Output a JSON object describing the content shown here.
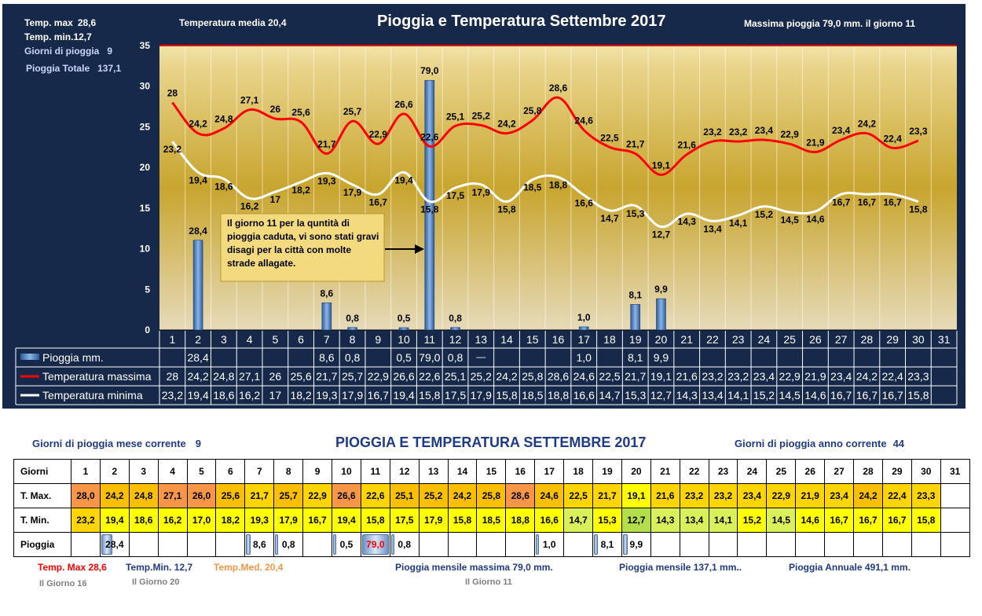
{
  "top": {
    "title": "Pioggia e Temperatura Settembre 2017",
    "temp_max_label": "Temp. max",
    "temp_max_value": "28,6",
    "temp_min_label": "Temp. min.12,7",
    "giorni_pioggia_label": "Giorni di pioggia",
    "giorni_pioggia_value": "9",
    "pioggia_totale_label": "Pioggia Totale",
    "pioggia_totale_value": "137,1",
    "temp_media": "Temperatura media  20,4",
    "massima_pioggia": "Massima pioggia  79,0 mm.  il giorno 11",
    "annotation": "Il giorno 11 per la quntità di pioggia caduta, vi sono stati gravi disagi per la città con molte strade allagate.",
    "legend_rain": "Pioggia mm.",
    "legend_tmax": "Temperatura massima",
    "legend_tmin": "Temperatura minima"
  },
  "chart_data": {
    "type": "bar+line",
    "categories": [
      "1",
      "2",
      "3",
      "4",
      "5",
      "6",
      "7",
      "8",
      "9",
      "10",
      "11",
      "12",
      "13",
      "14",
      "15",
      "16",
      "17",
      "18",
      "19",
      "20",
      "21",
      "22",
      "23",
      "24",
      "25",
      "26",
      "27",
      "28",
      "29",
      "30",
      "31"
    ],
    "y_left": {
      "min": 0,
      "max": 35,
      "ticks": [
        0,
        5,
        10,
        15,
        20,
        25,
        30,
        35
      ]
    },
    "y_right": {
      "min": 0,
      "max": 90,
      "ticks": [
        0,
        10,
        20,
        30,
        40,
        50,
        60,
        70,
        80,
        90
      ]
    },
    "series": [
      {
        "name": "Pioggia mm.",
        "type": "bar",
        "axis": "right",
        "color": "#4f81bd",
        "values": [
          null,
          28.4,
          null,
          null,
          null,
          null,
          8.6,
          0.8,
          null,
          0.5,
          79.0,
          0.8,
          null,
          null,
          null,
          null,
          1.0,
          null,
          8.1,
          9.9,
          null,
          null,
          null,
          null,
          null,
          null,
          null,
          null,
          null,
          null,
          null
        ],
        "labels": [
          "",
          "28,4",
          "",
          "",
          "",
          "",
          "8,6",
          "0,8",
          "",
          "0,5",
          "79,0",
          "0,8",
          "",
          "",
          "",
          "",
          "1,0",
          "",
          "8,1",
          "9,9",
          "",
          "",
          "",
          "",
          "",
          "",
          "",
          "",
          "",
          "",
          ""
        ]
      },
      {
        "name": "Temperatura massima",
        "type": "line",
        "axis": "left",
        "color": "#ff0000",
        "values": [
          28,
          24.2,
          24.8,
          27.1,
          26,
          25.6,
          21.7,
          25.7,
          22.9,
          26.6,
          22.6,
          25.1,
          25.2,
          24.2,
          25.8,
          28.6,
          24.6,
          22.5,
          21.7,
          19.1,
          21.6,
          23.2,
          23.2,
          23.4,
          22.9,
          21.9,
          23.4,
          24.2,
          22.4,
          23.3,
          null
        ],
        "labels": [
          "28",
          "24,2",
          "24,8",
          "27,1",
          "26",
          "25,6",
          "21,7",
          "25,7",
          "22,9",
          "26,6",
          "22,6",
          "25,1",
          "25,2",
          "24,2",
          "25,8",
          "28,6",
          "24,6",
          "22,5",
          "21,7",
          "19,1",
          "21,6",
          "23,2",
          "23,2",
          "23,4",
          "22,9",
          "21,9",
          "23,4",
          "24,2",
          "22,4",
          "23,3",
          ""
        ]
      },
      {
        "name": "Temperatura minima",
        "type": "line",
        "axis": "left",
        "color": "#ffffff",
        "values": [
          23.2,
          19.4,
          18.6,
          16.2,
          17,
          18.2,
          19.3,
          17.9,
          16.7,
          19.4,
          15.8,
          17.5,
          17.9,
          15.8,
          18.5,
          18.8,
          16.6,
          14.7,
          15.3,
          12.7,
          14.3,
          13.4,
          14.1,
          15.2,
          14.5,
          14.6,
          16.7,
          16.7,
          16.7,
          15.8,
          null
        ],
        "labels": [
          "23,2",
          "19,4",
          "18,6",
          "16,2",
          "17",
          "18,2",
          "19,3",
          "17,9",
          "16,7",
          "19,4",
          "15,8",
          "17,5",
          "17,9",
          "15,8",
          "18,5",
          "18,8",
          "16,6",
          "14,7",
          "15,3",
          "12,7",
          "14,3",
          "13,4",
          "14,1",
          "15,2",
          "14,5",
          "14,6",
          "16,7",
          "16,7",
          "16,7",
          "15,8",
          ""
        ]
      }
    ],
    "table_extra": {
      "row1_day13": "—"
    }
  },
  "bottom": {
    "title": "PIOGGIA E TEMPERATURA SETTEMBRE 2017",
    "giorni_mese": "Giorni di pioggia mese corrente",
    "giorni_mese_value": "9",
    "giorni_anno": "Giorni di pioggia anno corrente",
    "giorni_anno_value": "44",
    "row_labels": [
      "Giorni",
      "T. Max.",
      "T. Min.",
      "Pioggia"
    ],
    "days": [
      "1",
      "2",
      "3",
      "4",
      "5",
      "6",
      "7",
      "8",
      "9",
      "10",
      "11",
      "12",
      "13",
      "14",
      "15",
      "16",
      "17",
      "18",
      "19",
      "20",
      "21",
      "22",
      "23",
      "24",
      "25",
      "26",
      "27",
      "28",
      "29",
      "30",
      "31"
    ],
    "tmax": [
      "28,0",
      "24,2",
      "24,8",
      "27,1",
      "26,0",
      "25,6",
      "21,7",
      "25,7",
      "22,9",
      "26,6",
      "22,6",
      "25,1",
      "25,2",
      "24,2",
      "25,8",
      "28,6",
      "24,6",
      "22,5",
      "21,7",
      "19,1",
      "21,6",
      "23,2",
      "23,2",
      "23,4",
      "22,9",
      "21,9",
      "23,4",
      "24,2",
      "22,4",
      "23,3",
      ""
    ],
    "tmin": [
      "23,2",
      "19,4",
      "18,6",
      "16,2",
      "17,0",
      "18,2",
      "19,3",
      "17,9",
      "16,7",
      "19,4",
      "15,8",
      "17,5",
      "17,9",
      "15,8",
      "18,5",
      "18,8",
      "16,6",
      "14,7",
      "15,3",
      "12,7",
      "14,3",
      "13,4",
      "14,1",
      "15,2",
      "14,5",
      "14,6",
      "16,7",
      "16,7",
      "16,7",
      "15,8",
      ""
    ],
    "rain": [
      "",
      "28,4",
      "",
      "",
      "",
      "",
      "8,6",
      "0,8",
      "",
      "0,5",
      "79,0",
      "0,8",
      "",
      "",
      "",
      "",
      "1,0",
      "",
      "8,1",
      "9,9",
      "",
      "",
      "",
      "",
      "",
      "",
      "",
      "",
      "",
      "",
      ""
    ],
    "rain_fill": [
      0,
      0.36,
      0,
      0,
      0,
      0,
      0.11,
      0.01,
      0,
      0.01,
      1,
      0.01,
      0,
      0,
      0,
      0,
      0.01,
      0,
      0.1,
      0.13,
      0,
      0,
      0,
      0,
      0,
      0,
      0,
      0,
      0,
      0,
      0
    ],
    "tmax_colors": [
      "#f79646",
      "#fac000",
      "#fac000",
      "#f79646",
      "#f79646",
      "#fac000",
      "#ffd500",
      "#fac000",
      "#ffd500",
      "#f79646",
      "#ffd500",
      "#fac000",
      "#fac000",
      "#fac000",
      "#fac000",
      "#f79646",
      "#fac000",
      "#ffd500",
      "#ffd500",
      "#ffff00",
      "#ffd500",
      "#ffd500",
      "#ffd500",
      "#ffd500",
      "#ffd500",
      "#ffd500",
      "#ffd500",
      "#fac000",
      "#ffd500",
      "#ffd500",
      "#ffffff"
    ],
    "tmin_colors": [
      "#ffd500",
      "#ffff00",
      "#ffff00",
      "#ffff00",
      "#ffff00",
      "#ffff00",
      "#ffff00",
      "#ffff00",
      "#ffff00",
      "#ffff00",
      "#ffff00",
      "#ffff00",
      "#ffff00",
      "#ffff00",
      "#ffff00",
      "#ffff00",
      "#ffff00",
      "#d9f05a",
      "#ffff00",
      "#b3de4b",
      "#d9f05a",
      "#d9f05a",
      "#d9f05a",
      "#ffff00",
      "#d9f05a",
      "#ffff00",
      "#ffff00",
      "#ffff00",
      "#ffff00",
      "#ffff00",
      "#ffffff"
    ],
    "foot_tmax": "Temp. Max  28,6",
    "foot_tmin": "Temp.Min.  12,7",
    "foot_tmed": "Temp.Med. 20,4",
    "foot_giorno16": "Il Giorno  16",
    "foot_giorno20": "Il Giorno 20",
    "foot_pmax": "Pioggia mensile massima  79,0 mm.",
    "foot_giorno11": "Il Giorno 11",
    "foot_pmens": "Pioggia mensile  137,1 mm..",
    "foot_pann": "Pioggia Annuale  491,1 mm."
  },
  "colors": {
    "panel": "#17294a",
    "plot_top": "#c8a52e",
    "plot_bottom": "#e9dcb8",
    "rain": "#4f81bd",
    "tmax": "#ff0000",
    "tmin": "#ffffff",
    "annotation_bg": "#f3da7f",
    "title_blue": "#1f3a86"
  }
}
